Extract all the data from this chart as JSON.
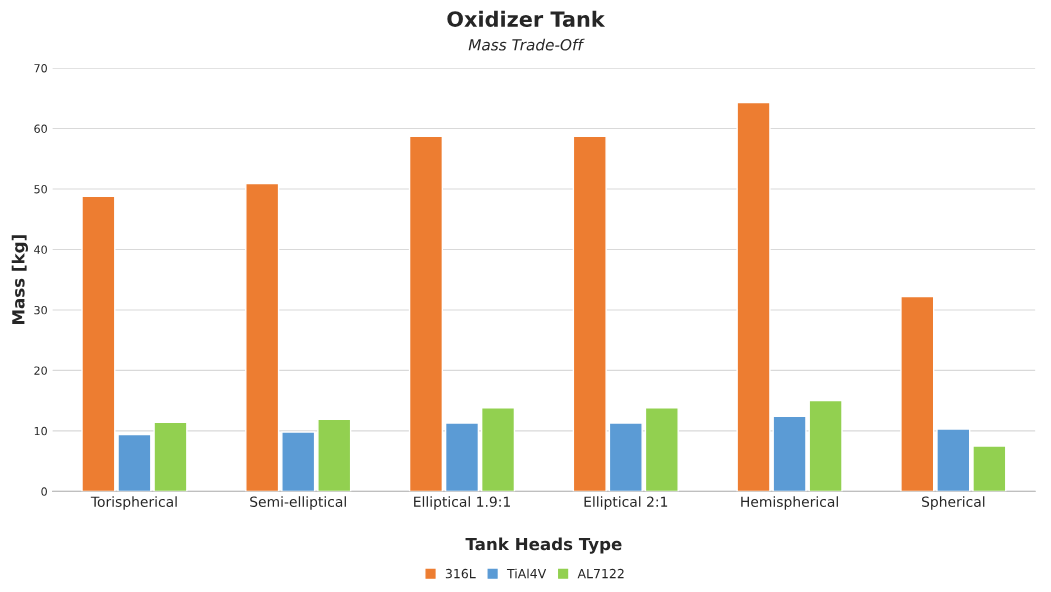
{
  "chart_data": {
    "type": "bar",
    "title": "Oxidizer Tank",
    "subtitle": "Mass Trade-Off",
    "xlabel": "Tank Heads Type",
    "ylabel": "Mass [kg]",
    "categories": [
      "Torispherical",
      "Semi-elliptical",
      "Elliptical 1.9:1",
      "Elliptical 2:1",
      "Hemispherical",
      "Spherical"
    ],
    "series": [
      {
        "name": "316L",
        "color": "#ed7d31",
        "values": [
          48.8,
          50.9,
          58.7,
          58.7,
          64.3,
          32.2
        ]
      },
      {
        "name": "TiAl4V",
        "color": "#5b9bd5",
        "values": [
          9.4,
          9.8,
          11.3,
          11.3,
          12.4,
          10.3
        ]
      },
      {
        "name": "AL7122",
        "color": "#92d050",
        "values": [
          11.4,
          11.9,
          13.8,
          13.8,
          15.0,
          7.5
        ]
      }
    ],
    "ylim": [
      0,
      70
    ],
    "yticks": [
      0,
      10,
      20,
      30,
      40,
      50,
      60,
      70
    ],
    "grid": "y",
    "legend": "bottom"
  }
}
